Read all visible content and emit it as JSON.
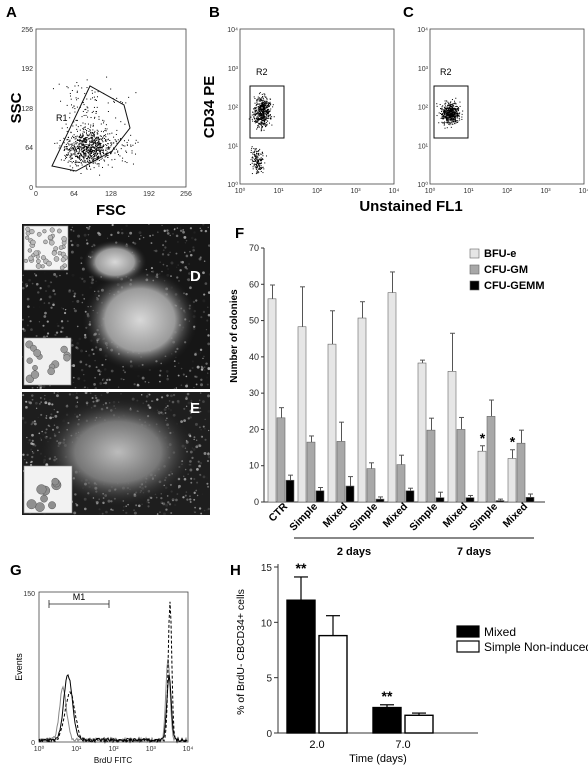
{
  "panels": {
    "A": {
      "label": "A",
      "xlabel": "FSC",
      "ylabel": "SSC",
      "gate": "R1",
      "xticks": [
        "0",
        "64",
        "128",
        "192",
        "256"
      ],
      "yticks": [
        "0",
        "64",
        "128",
        "192",
        "256"
      ]
    },
    "B": {
      "label": "B",
      "ylabel": "CD34 PE",
      "gate": "R2"
    },
    "C": {
      "label": "C",
      "gate": "R2"
    },
    "BC_xlabel": "Unstained FL1",
    "D": {
      "label": "D"
    },
    "E": {
      "label": "E"
    },
    "F": {
      "label": "F"
    },
    "G": {
      "label": "G",
      "ylabel": "Events",
      "xlabel": "BrdU FITC",
      "marker": "M1",
      "yticks": [
        "0",
        "150"
      ]
    },
    "H": {
      "label": "H"
    }
  },
  "colors": {
    "bfu": "#e6e6e6",
    "cfugm": "#a8a8a8",
    "cfugemm": "#000000",
    "mixed": "#000000",
    "simple": "#ffffff",
    "cell_bg": "#1a1a1a"
  },
  "chart_data": [
    {
      "panel": "F",
      "type": "bar",
      "ylabel": "Number of colonies",
      "ylim": [
        0,
        70
      ],
      "yticks": [
        "0",
        "10",
        "20",
        "30",
        "40",
        "50",
        "60",
        "70"
      ],
      "categories": [
        "CTR",
        "Simple",
        "Mixed",
        "Simple",
        "Mixed",
        "Simple",
        "Mixed",
        "Simple",
        "Mixed"
      ],
      "groups": [
        {
          "label": "2 days",
          "from": 1,
          "to": 4
        },
        {
          "label": "7 days",
          "from": 5,
          "to": 8
        }
      ],
      "series": [
        {
          "name": "BFU-e",
          "values": [
            56,
            48.3,
            43.5,
            50.7,
            57.7,
            38.3,
            36,
            14,
            12
          ],
          "errors": [
            3.8,
            11,
            9.2,
            4.5,
            5.7,
            0.8,
            10.5,
            1.5,
            2.4
          ]
        },
        {
          "name": "CFU-GM",
          "values": [
            23.2,
            16.5,
            16.7,
            9.2,
            10.3,
            19.8,
            20,
            23.6,
            16.2
          ],
          "errors": [
            2.8,
            1.7,
            5.3,
            1.6,
            2.6,
            3.3,
            3.3,
            4.5,
            3.6
          ]
        },
        {
          "name": "CFU-GEMM",
          "values": [
            6,
            3.1,
            4.4,
            0.8,
            3.1,
            1.2,
            1.2,
            0.4,
            1.3
          ],
          "errors": [
            1.4,
            0.9,
            2.6,
            0.6,
            0.7,
            1.5,
            0.6,
            0.4,
            0.9
          ]
        }
      ],
      "annotations": [
        {
          "category": 7,
          "text": "*"
        },
        {
          "category": 8,
          "text": "*"
        }
      ],
      "legend": "top-right"
    },
    {
      "panel": "H",
      "type": "bar",
      "ylabel": "% of BrdU- CBCD34+ cells",
      "xlabel": "Time (days)",
      "ylim": [
        0,
        15
      ],
      "yticks": [
        "0",
        "5",
        "10",
        "15"
      ],
      "categories": [
        "2.0",
        "7.0"
      ],
      "series": [
        {
          "name": "Mixed",
          "values": [
            12,
            2.3
          ],
          "errors": [
            2.1,
            0.25
          ]
        },
        {
          "name": "Simple Non-induced",
          "values": [
            8.8,
            1.6
          ],
          "errors": [
            1.8,
            0.2
          ]
        }
      ],
      "annotations": [
        {
          "category": 0,
          "text": "**"
        },
        {
          "category": 1,
          "text": "**"
        }
      ],
      "legend": "top-right"
    }
  ]
}
